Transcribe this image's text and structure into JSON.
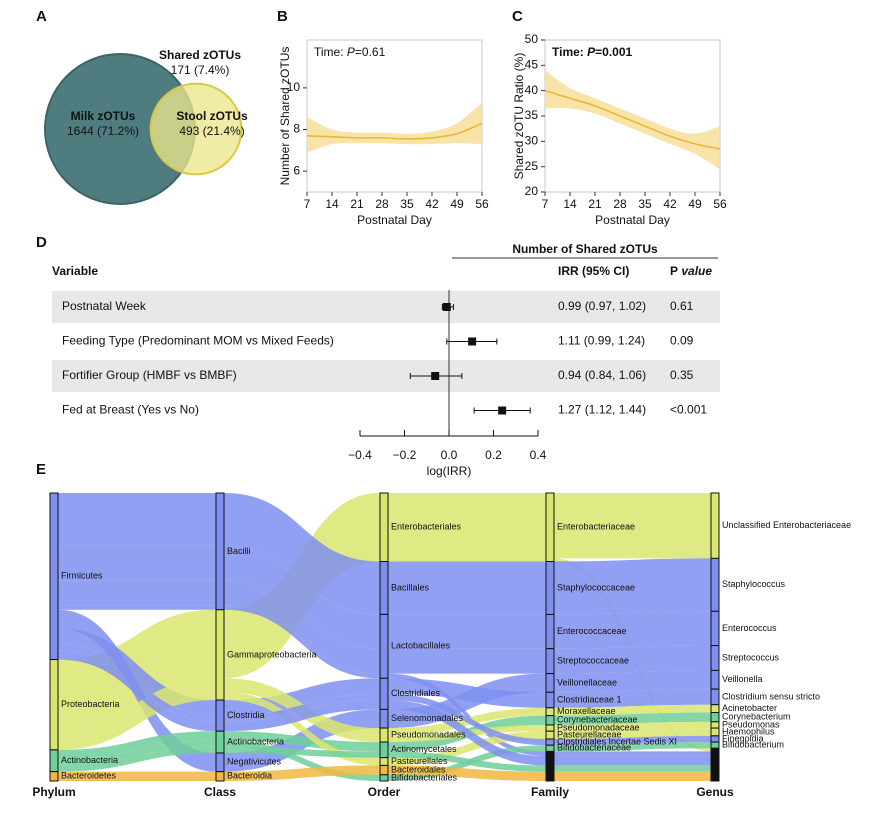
{
  "chart_data": [
    {
      "type": "venn",
      "panel": "A",
      "sets": [
        {
          "name": "Milk zOTUs",
          "value": 1644,
          "value_label": "1644 (71.2%)",
          "color": "#4f7d7f"
        },
        {
          "name": "Stool zOTUs",
          "value": 493,
          "value_label": "493 (21.4%)",
          "color": "#ece78c"
        }
      ],
      "intersection": {
        "name": "Shared zOTUs",
        "value": 171,
        "value_label": "171 (7.4%)"
      }
    },
    {
      "type": "line",
      "panel": "B",
      "annotation": [
        "Time: ",
        "P",
        "=0.61"
      ],
      "annotation_bold": false,
      "x_label": "Postnatal Day",
      "y_label": "Number of Shared zOTUs",
      "x": [
        7,
        14,
        21,
        28,
        35,
        42,
        49,
        56
      ],
      "xlim": [
        7,
        56
      ],
      "xticks": [
        7,
        14,
        21,
        28,
        35,
        42,
        49,
        56
      ],
      "ylim": [
        5,
        12.3
      ],
      "yticks": [
        6,
        8,
        10
      ],
      "series": [
        {
          "color": "#e9b83a",
          "band_color": "#f6dc94",
          "values": [
            7.7,
            7.65,
            7.6,
            7.6,
            7.55,
            7.6,
            7.8,
            8.3
          ],
          "lower": [
            6.9,
            7.3,
            7.35,
            7.35,
            7.3,
            7.3,
            7.35,
            7.3
          ],
          "upper": [
            8.6,
            8.0,
            7.85,
            7.85,
            7.8,
            7.9,
            8.3,
            9.3
          ]
        }
      ]
    },
    {
      "type": "line",
      "panel": "C",
      "annotation": [
        "Time: ",
        "P",
        "=0.001"
      ],
      "annotation_bold": true,
      "x_label": "Postnatal Day",
      "y_label": "Shared zOTU Ratio (%)",
      "x": [
        7,
        14,
        21,
        28,
        35,
        42,
        49,
        56
      ],
      "xlim": [
        7,
        56
      ],
      "xticks": [
        7,
        14,
        21,
        28,
        35,
        42,
        49,
        56
      ],
      "ylim": [
        20,
        50
      ],
      "yticks": [
        20,
        25,
        30,
        35,
        40,
        45,
        50
      ],
      "series": [
        {
          "color": "#e9b83a",
          "band_color": "#f6dc94",
          "values": [
            40,
            38.5,
            37,
            35,
            33,
            31,
            29.5,
            28.5
          ],
          "lower": [
            36.5,
            36.5,
            35.5,
            33.5,
            31.5,
            29.5,
            27.5,
            24.5
          ],
          "upper": [
            44,
            40.5,
            38.5,
            36.5,
            34.5,
            32.5,
            31.5,
            33
          ]
        }
      ]
    },
    {
      "type": "forest",
      "panel": "D",
      "title": "Number of Shared zOTUs",
      "header": {
        "variable": "Variable",
        "irr": "IRR (95% CI)",
        "p": [
          "P",
          " value"
        ]
      },
      "x_label": "log(IRR)",
      "xlim": [
        -0.4,
        0.4
      ],
      "xticks": [
        {
          "value": -0.4,
          "label": "−0.4"
        },
        {
          "value": -0.2,
          "label": "−0.2"
        },
        {
          "value": 0,
          "label": "0.0"
        },
        0.2,
        0.4
      ],
      "rows": [
        {
          "label": "Postnatal Week",
          "estimate": -0.01,
          "lower": -0.03,
          "upper": 0.02,
          "irr": "0.99 (0.97, 1.02)",
          "p": "0.61"
        },
        {
          "label": "Feeding Type (Predominant MOM vs Mixed Feeds)",
          "estimate": 0.104,
          "lower": -0.01,
          "upper": 0.215,
          "irr": "1.11 (0.99, 1.24)",
          "p": "0.09"
        },
        {
          "label": "Fortifier Group (HMBF vs BMBF)",
          "estimate": -0.062,
          "lower": -0.174,
          "upper": 0.058,
          "irr": "0.94 (0.84, 1.06)",
          "p": "0.35"
        },
        {
          "label": "Fed at Breast (Yes vs No)",
          "estimate": 0.239,
          "lower": 0.113,
          "upper": 0.365,
          "irr": "1.27 (1.12, 1.44)",
          "p": "<0.001"
        }
      ]
    },
    {
      "type": "sankey",
      "panel": "E",
      "columns": [
        {
          "name": "Phylum",
          "nodes": [
            "Firmicutes",
            "Proteobacteria",
            "Actinobacteria",
            "Bacteroidetes"
          ],
          "colors": [
            "#7e8ff0",
            "#dbe66f",
            "#6fcf9a",
            "#f0b840"
          ]
        },
        {
          "name": "Class",
          "nodes": [
            "Bacilli",
            "Gammaproteobacteria",
            "Clostridia",
            "Actinobacteria",
            "Negativicutes",
            "Bacteroidia"
          ]
        },
        {
          "name": "Order",
          "nodes": [
            "Enterobacteriales",
            "Bacillales",
            "Lactobacillales",
            "Clostridiales",
            "Selenomonadales",
            "Pseudomonadales",
            "Actinomycetales",
            "Pasteurellales",
            "Bacteroidales",
            "Bifidobacteriales"
          ]
        },
        {
          "name": "Family",
          "nodes": [
            "Enterobacteriaceae",
            "Staphylococcaceae",
            "Enterococcaceae",
            "Streptococcaceae",
            "Veillonellaceae",
            "Clostridiaceae 1",
            "Moraxellaceae",
            "Corynebacteriaceae",
            "Pseudomonadaceae",
            "Pasteurellaceae",
            "Clostridiales Incertae Sedis XI",
            "Bifidobacteriaceae",
            null
          ]
        },
        {
          "name": "Genus",
          "nodes": [
            "Unclassified Enterobacteriaceae",
            "Staphylococcus",
            "Enterococcus",
            "Streptococcus",
            "Veillonella",
            "Clostridium sensu stricto",
            "Acinetobacter",
            "Corynebacterium",
            "Pseudomonas",
            "Haemophilus",
            "Finegoldia",
            "Bifidobacterium",
            null
          ]
        }
      ],
      "flows": [
        {
          "nodes": [
            1,
            1,
            0,
            0,
            0
          ],
          "value": 21
        },
        {
          "nodes": [
            1,
            1,
            0,
            0,
            12
          ],
          "value": 1
        },
        {
          "nodes": [
            0,
            0,
            1,
            1,
            1
          ],
          "value": 17
        },
        {
          "nodes": [
            0,
            0,
            2,
            2,
            2
          ],
          "value": 11
        },
        {
          "nodes": [
            0,
            0,
            2,
            3,
            3
          ],
          "value": 8
        },
        {
          "nodes": [
            0,
            0,
            2,
            12,
            12
          ],
          "value": 1.5
        },
        {
          "nodes": [
            0,
            4,
            4,
            4,
            4
          ],
          "value": 6
        },
        {
          "nodes": [
            0,
            2,
            3,
            5,
            5
          ],
          "value": 5
        },
        {
          "nodes": [
            1,
            1,
            5,
            6,
            6
          ],
          "value": 2.5
        },
        {
          "nodes": [
            2,
            3,
            6,
            7,
            7
          ],
          "value": 3
        },
        {
          "nodes": [
            1,
            1,
            5,
            8,
            8
          ],
          "value": 2
        },
        {
          "nodes": [
            1,
            1,
            7,
            9,
            9
          ],
          "value": 2.5
        },
        {
          "nodes": [
            0,
            2,
            3,
            10,
            10
          ],
          "value": 2
        },
        {
          "nodes": [
            2,
            3,
            9,
            11,
            11
          ],
          "value": 2
        },
        {
          "nodes": [
            0,
            2,
            3,
            12,
            12
          ],
          "value": 3
        },
        {
          "nodes": [
            2,
            3,
            6,
            12,
            12
          ],
          "value": 2
        },
        {
          "nodes": [
            3,
            5,
            8,
            12,
            12
          ],
          "value": 3
        }
      ]
    }
  ]
}
